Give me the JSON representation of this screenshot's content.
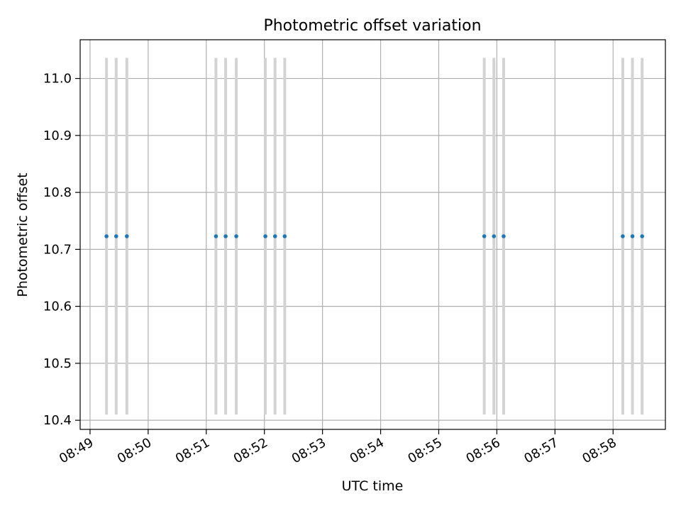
{
  "chart_data": {
    "type": "scatter",
    "title": "Photometric offset variation",
    "xlabel": "UTC time",
    "ylabel": "Photometric offset",
    "grid": true,
    "x_ticks": [
      "08:49",
      "08:50",
      "08:51",
      "08:52",
      "08:53",
      "08:54",
      "08:55",
      "08:56",
      "08:57",
      "08:58"
    ],
    "x_tick_values_min": [
      0,
      1,
      2,
      3,
      4,
      5,
      6,
      7,
      8,
      9
    ],
    "xlim_min": [
      -0.17,
      9.9
    ],
    "y_ticks": [
      "10.4",
      "10.5",
      "10.6",
      "10.7",
      "10.8",
      "10.9",
      "11.0"
    ],
    "y_tick_values": [
      10.4,
      10.5,
      10.6,
      10.7,
      10.8,
      10.9,
      11.0
    ],
    "ylim": [
      10.384,
      11.068
    ],
    "points": [
      {
        "t": "08:49:17",
        "y": 10.723,
        "ylow": 10.41,
        "yhigh": 11.036
      },
      {
        "t": "08:49:27",
        "y": 10.723,
        "ylow": 10.41,
        "yhigh": 11.036
      },
      {
        "t": "08:49:38",
        "y": 10.723,
        "ylow": 10.41,
        "yhigh": 11.036
      },
      {
        "t": "08:51:10",
        "y": 10.723,
        "ylow": 10.41,
        "yhigh": 11.036
      },
      {
        "t": "08:51:20",
        "y": 10.723,
        "ylow": 10.41,
        "yhigh": 11.036
      },
      {
        "t": "08:51:31",
        "y": 10.723,
        "ylow": 10.41,
        "yhigh": 11.036
      },
      {
        "t": "08:52:01",
        "y": 10.723,
        "ylow": 10.41,
        "yhigh": 11.036
      },
      {
        "t": "08:52:11",
        "y": 10.723,
        "ylow": 10.41,
        "yhigh": 11.036
      },
      {
        "t": "08:52:21",
        "y": 10.723,
        "ylow": 10.41,
        "yhigh": 11.036
      },
      {
        "t": "08:55:47",
        "y": 10.723,
        "ylow": 10.41,
        "yhigh": 11.036
      },
      {
        "t": "08:55:57",
        "y": 10.723,
        "ylow": 10.41,
        "yhigh": 11.036
      },
      {
        "t": "08:56:07",
        "y": 10.723,
        "ylow": 10.41,
        "yhigh": 11.036
      },
      {
        "t": "08:58:10",
        "y": 10.723,
        "ylow": 10.41,
        "yhigh": 11.036
      },
      {
        "t": "08:58:20",
        "y": 10.723,
        "ylow": 10.41,
        "yhigh": 11.036
      },
      {
        "t": "08:58:30",
        "y": 10.723,
        "ylow": 10.41,
        "yhigh": 11.036
      }
    ],
    "colors": {
      "point": "#1f77b4",
      "errorbar": "#d3d3d3",
      "grid": "#b0b0b0"
    }
  }
}
